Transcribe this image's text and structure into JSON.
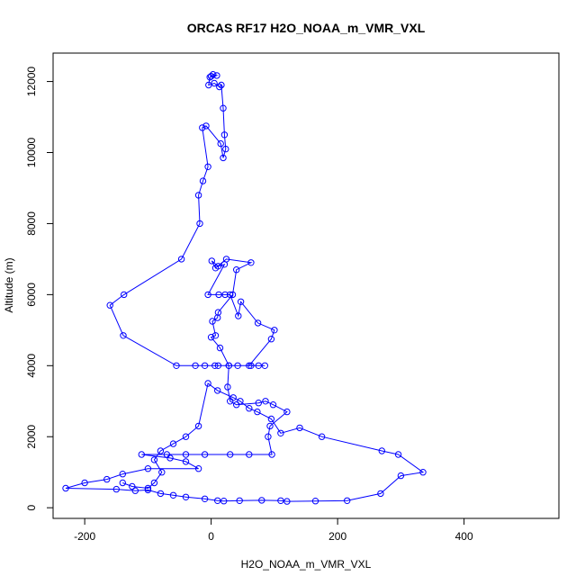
{
  "chart_data": {
    "type": "line",
    "title": "ORCAS RF17 H2O_NOAA_m_VMR_VXL",
    "xlabel": "H2O_NOAA_m_VMR_VXL",
    "ylabel": "Altitude (m)",
    "xlim": [
      -250,
      550
    ],
    "ylim": [
      -300,
      12800
    ],
    "xticks": [
      -200,
      0,
      200,
      400
    ],
    "yticks": [
      0,
      2000,
      4000,
      6000,
      8000,
      10000,
      12000
    ],
    "grid": false,
    "marker": "open-circle",
    "colors": {
      "series": "#0000ff",
      "axis": "#000000",
      "background": "#ffffff"
    },
    "series": [
      {
        "values": [
          [
            0,
            12150
          ],
          [
            3,
            12200
          ],
          [
            9,
            12170
          ],
          [
            -2,
            12120
          ],
          [
            -4,
            11900
          ],
          [
            5,
            11950
          ],
          [
            13,
            11850
          ],
          [
            16,
            11900
          ],
          [
            19,
            11250
          ],
          [
            21,
            10500
          ],
          [
            23,
            10100
          ],
          [
            19,
            9850
          ],
          [
            15,
            10250
          ],
          [
            -8,
            10750
          ],
          [
            -14,
            10700
          ],
          [
            -5,
            9600
          ],
          [
            -13,
            9200
          ],
          [
            -20,
            8800
          ],
          [
            -18,
            8000
          ],
          [
            -47,
            7000
          ],
          [
            -138,
            6000
          ],
          [
            -160,
            5700
          ],
          [
            -139,
            4850
          ],
          [
            -55,
            4000
          ],
          [
            -25,
            4000
          ],
          [
            -10,
            4000
          ],
          [
            6,
            4000
          ],
          [
            28,
            4000
          ],
          [
            14,
            4500
          ],
          [
            0,
            4800
          ],
          [
            7,
            4850
          ],
          [
            2,
            5250
          ],
          [
            10,
            5350
          ],
          [
            11,
            5500
          ],
          [
            34,
            6000
          ],
          [
            40,
            6700
          ],
          [
            63,
            6900
          ],
          [
            24,
            7000
          ],
          [
            7,
            6750
          ],
          [
            1,
            6950
          ],
          [
            11,
            6800
          ],
          [
            21,
            6850
          ],
          [
            -5,
            6000
          ],
          [
            12,
            6000
          ],
          [
            22,
            6000
          ],
          [
            30,
            6000
          ],
          [
            43,
            5400
          ],
          [
            47,
            5800
          ],
          [
            74,
            5200
          ],
          [
            100,
            5000
          ],
          [
            95,
            4750
          ],
          [
            60,
            4000
          ],
          [
            75,
            4000
          ],
          [
            85,
            4000
          ],
          [
            63,
            4000
          ],
          [
            42,
            4000
          ],
          [
            11,
            4000
          ],
          [
            28,
            4000
          ],
          [
            26,
            3400
          ],
          [
            30,
            3000
          ],
          [
            40,
            2900
          ],
          [
            75,
            2950
          ],
          [
            86,
            3000
          ],
          [
            98,
            2900
          ],
          [
            120,
            2700
          ],
          [
            93,
            2300
          ],
          [
            90,
            2000
          ],
          [
            96,
            1500
          ],
          [
            60,
            1500
          ],
          [
            30,
            1500
          ],
          [
            -10,
            1500
          ],
          [
            -40,
            1500
          ],
          [
            -70,
            1500
          ],
          [
            -110,
            1500
          ],
          [
            -65,
            1400
          ],
          [
            -40,
            1300
          ],
          [
            -20,
            1100
          ],
          [
            -100,
            1100
          ],
          [
            -140,
            950
          ],
          [
            -165,
            800
          ],
          [
            -200,
            700
          ],
          [
            -230,
            550
          ],
          [
            -150,
            520
          ],
          [
            -120,
            480
          ],
          [
            -100,
            500
          ],
          [
            -80,
            400
          ],
          [
            -60,
            350
          ],
          [
            -40,
            300
          ],
          [
            -10,
            250
          ],
          [
            10,
            200
          ],
          [
            20,
            190
          ],
          [
            45,
            200
          ],
          [
            80,
            210
          ],
          [
            110,
            200
          ],
          [
            120,
            180
          ],
          [
            165,
            190
          ],
          [
            215,
            200
          ],
          [
            268,
            400
          ],
          [
            300,
            900
          ],
          [
            335,
            1000
          ],
          [
            296,
            1500
          ],
          [
            270,
            1600
          ],
          [
            175,
            2000
          ],
          [
            140,
            2250
          ],
          [
            110,
            2100
          ],
          [
            95,
            2500
          ],
          [
            73,
            2700
          ],
          [
            60,
            2800
          ],
          [
            46,
            3000
          ],
          [
            35,
            3100
          ],
          [
            10,
            3300
          ],
          [
            -5,
            3500
          ],
          [
            -20,
            2300
          ],
          [
            -40,
            2000
          ],
          [
            -60,
            1800
          ],
          [
            -80,
            1600
          ],
          [
            -90,
            1350
          ],
          [
            -78,
            1000
          ],
          [
            -90,
            700
          ],
          [
            -100,
            550
          ],
          [
            -125,
            600
          ],
          [
            -140,
            700
          ]
        ]
      }
    ]
  }
}
